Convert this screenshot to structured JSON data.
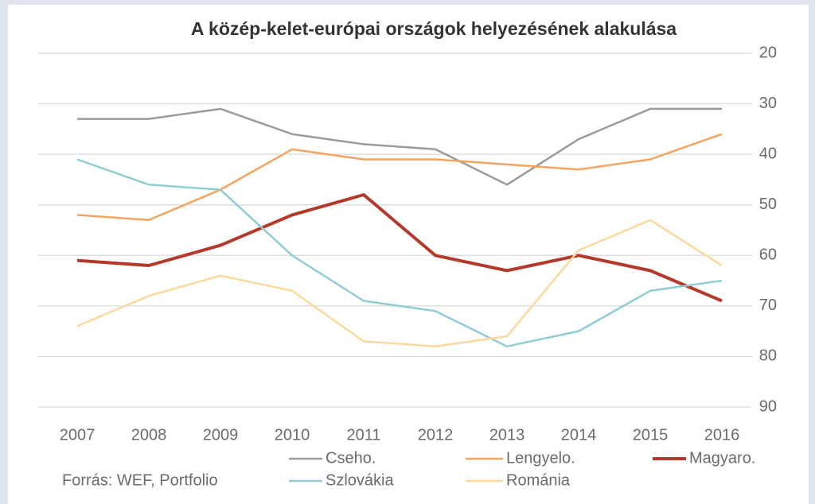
{
  "chart_data": {
    "type": "line",
    "title": "A közép-kelet-európai országok helyezésének alakulása",
    "source": "Forrás: WEF, Portfolio",
    "categories": [
      "2007",
      "2008",
      "2009",
      "2010",
      "2011",
      "2012",
      "2013",
      "2014",
      "2015",
      "2016"
    ],
    "series": [
      {
        "name": "Cseho.",
        "color": "#9b9b9b",
        "width": 2.5,
        "values": [
          33,
          33,
          31,
          36,
          38,
          39,
          46,
          37,
          31,
          31
        ]
      },
      {
        "name": "Lengyelo.",
        "color": "#f5a35e",
        "width": 2.5,
        "values": [
          52,
          53,
          47,
          39,
          41,
          41,
          42,
          43,
          41,
          36
        ]
      },
      {
        "name": "Magyaro.",
        "color": "#b5392b",
        "width": 4,
        "values": [
          61,
          62,
          58,
          52,
          48,
          60,
          63,
          60,
          63,
          69
        ]
      },
      {
        "name": "Szlovákia",
        "color": "#8ecdd2",
        "width": 2.5,
        "values": [
          41,
          46,
          47,
          60,
          69,
          71,
          78,
          75,
          67,
          65
        ]
      },
      {
        "name": "Románia",
        "color": "#fcd89c",
        "width": 2.5,
        "values": [
          74,
          68,
          64,
          67,
          77,
          78,
          76,
          59,
          53,
          62
        ]
      }
    ],
    "ylim": [
      20,
      90
    ],
    "y_inverted": true,
    "y_axis_side": "right",
    "yticks": [
      20,
      30,
      40,
      50,
      60,
      70,
      80,
      90
    ],
    "grid": true,
    "legend": "bottom"
  }
}
